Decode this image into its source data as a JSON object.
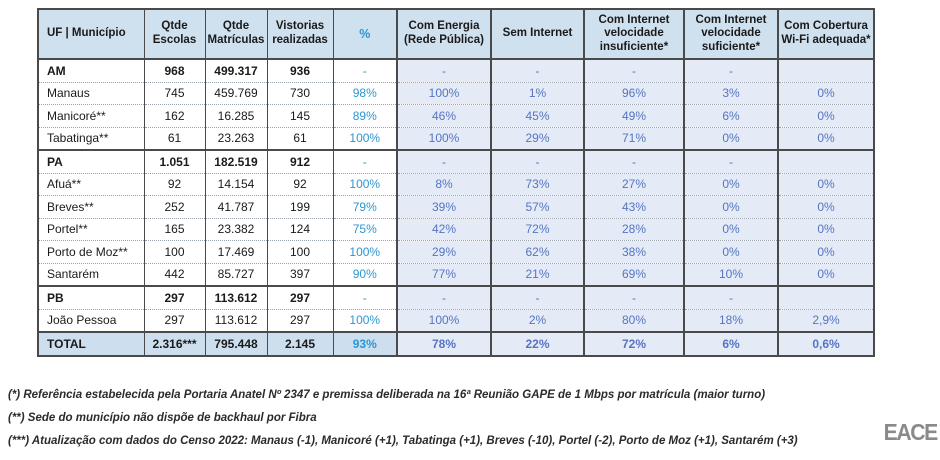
{
  "table": {
    "headers": [
      "UF | Município",
      "Qtde Escolas",
      "Qtde Matrículas",
      "Vistorias realizadas",
      "%",
      "Com Energia (Rede Pública)",
      "Sem Internet",
      "Com Internet velocidade insuficiente*",
      "Com Internet velocidade suficiente*",
      "Com Cobertura Wi-Fi adequada*"
    ],
    "rows": [
      {
        "type": "state",
        "cells": [
          "AM",
          "968",
          "499.317",
          "936",
          "-",
          "-",
          "-",
          "-",
          "-",
          ""
        ]
      },
      {
        "type": "municipality",
        "cells": [
          "Manaus",
          "745",
          "459.769",
          "730",
          "98%",
          "100%",
          "1%",
          "96%",
          "3%",
          "0%"
        ]
      },
      {
        "type": "municipality",
        "cells": [
          "Manicoré**",
          "162",
          "16.285",
          "145",
          "89%",
          "46%",
          "45%",
          "49%",
          "6%",
          "0%"
        ]
      },
      {
        "type": "municipality",
        "cells": [
          "Tabatinga**",
          "61",
          "23.263",
          "61",
          "100%",
          "100%",
          "29%",
          "71%",
          "0%",
          "0%"
        ]
      },
      {
        "type": "state",
        "cells": [
          "PA",
          "1.051",
          "182.519",
          "912",
          "-",
          "-",
          "-",
          "-",
          "-",
          ""
        ]
      },
      {
        "type": "municipality",
        "cells": [
          "Afuá**",
          "92",
          "14.154",
          "92",
          "100%",
          "8%",
          "73%",
          "27%",
          "0%",
          "0%"
        ]
      },
      {
        "type": "municipality",
        "cells": [
          "Breves**",
          "252",
          "41.787",
          "199",
          "79%",
          "39%",
          "57%",
          "43%",
          "0%",
          "0%"
        ]
      },
      {
        "type": "municipality",
        "cells": [
          "Portel**",
          "165",
          "23.382",
          "124",
          "75%",
          "42%",
          "72%",
          "28%",
          "0%",
          "0%"
        ]
      },
      {
        "type": "municipality",
        "cells": [
          "Porto de Moz**",
          "100",
          "17.469",
          "100",
          "100%",
          "29%",
          "62%",
          "38%",
          "0%",
          "0%"
        ]
      },
      {
        "type": "municipality",
        "cells": [
          "Santarém",
          "442",
          "85.727",
          "397",
          "90%",
          "77%",
          "21%",
          "69%",
          "10%",
          "0%"
        ]
      },
      {
        "type": "state",
        "cells": [
          "PB",
          "297",
          "113.612",
          "297",
          "-",
          "-",
          "-",
          "-",
          "-",
          ""
        ]
      },
      {
        "type": "municipality",
        "cells": [
          "João Pessoa",
          "297",
          "113.612",
          "297",
          "100%",
          "100%",
          "2%",
          "80%",
          "18%",
          "2,9%"
        ]
      },
      {
        "type": "total",
        "cells": [
          "TOTAL",
          "2.316***",
          "795.448",
          "2.145",
          "93%",
          "78%",
          "22%",
          "72%",
          "6%",
          "0,6%"
        ]
      }
    ]
  },
  "footnotes": [
    "(*) Referência estabelecida pela Portaria Anatel Nº 2347 e premissa deliberada na 16ª Reunião GAPE de 1 Mbps por matrícula (maior turno)",
    "(**) Sede do município não dispõe de backhaul por Fibra",
    "(***) Atualização com dados do Censo 2022: Manaus (-1), Manicoré (+1), Tabatinga (+1), Breves (-10), Portel (-2), Porto de Moz (+1), Santarém (+3)"
  ],
  "logo": "EACE",
  "colors": {
    "header_bg": "#cfe0ef",
    "total_bg": "#cddfee",
    "shaded_bg": "#e4ebf6",
    "accent_blue": "#2b96d2",
    "muted_blue": "#5674c2",
    "border_dark": "#4a4a4a"
  }
}
